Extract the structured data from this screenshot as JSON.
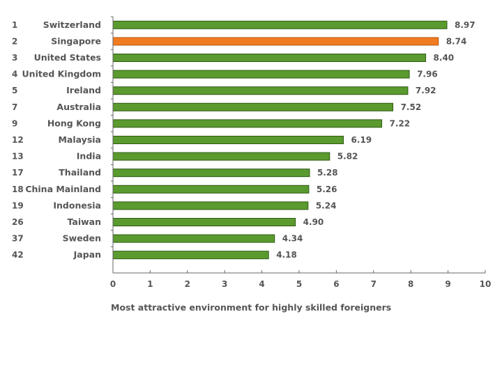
{
  "chart_data": {
    "type": "bar",
    "orientation": "horizontal",
    "categories": [
      "Switzerland",
      "Singapore",
      "United States",
      "United Kingdom",
      "Ireland",
      "Australia",
      "Hong Kong",
      "Malaysia",
      "India",
      "Thailand",
      "China Mainland",
      "Indonesia",
      "Taiwan",
      "Sweden",
      "Japan"
    ],
    "ranks": [
      "1",
      "2",
      "3",
      "4",
      "5",
      "7",
      "9",
      "12",
      "13",
      "17",
      "18",
      "19",
      "26",
      "37",
      "42"
    ],
    "values": [
      8.97,
      8.74,
      8.4,
      7.96,
      7.92,
      7.52,
      7.22,
      6.19,
      5.82,
      5.28,
      5.26,
      5.24,
      4.9,
      4.34,
      4.18
    ],
    "value_labels": [
      "8.97",
      "8.74",
      "8.40",
      "7.96",
      "7.92",
      "7.52",
      "7.22",
      "6.19",
      "5.82",
      "5.28",
      "5.26",
      "5.24",
      "4.90",
      "4.34",
      "4.18"
    ],
    "highlight_index": 1,
    "xlim": [
      0,
      10
    ],
    "xticks": [
      "0",
      "1",
      "2",
      "3",
      "4",
      "5",
      "6",
      "7",
      "8",
      "9",
      "10"
    ],
    "xlabel": "Most attractive environment for highly skilled foreigners",
    "title": "",
    "grid": false,
    "colors": {
      "bar": "#5a9a2e",
      "bar_edge": "#2f5a14",
      "highlight": "#f07c22",
      "highlight_edge": "#b9560c",
      "text": "#555555",
      "axis": "#666666"
    }
  }
}
